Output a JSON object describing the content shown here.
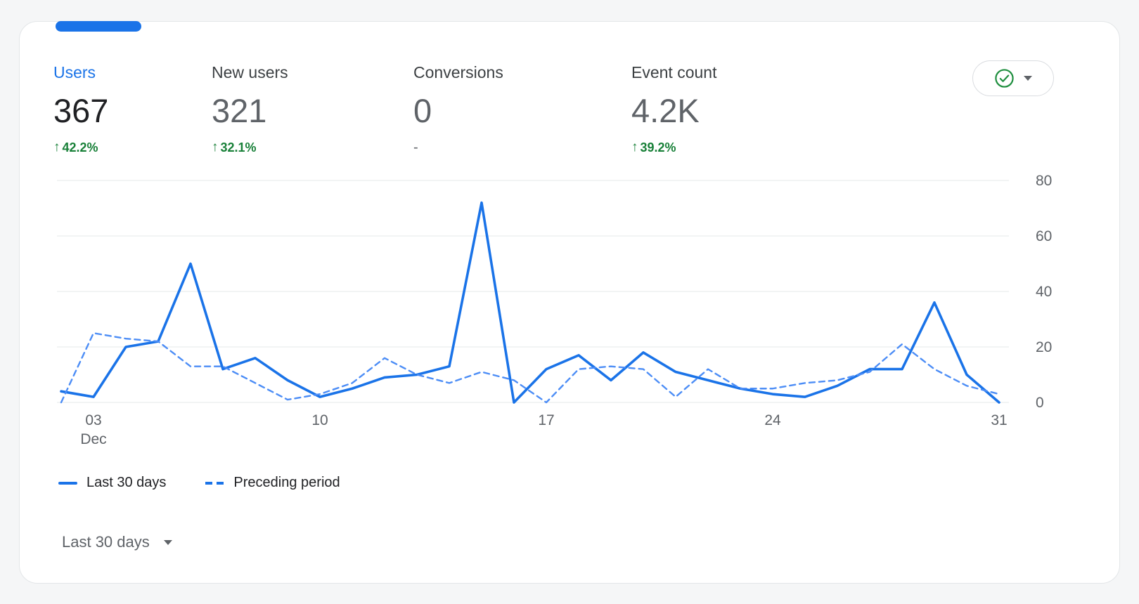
{
  "card": {
    "metrics": [
      {
        "label": "Users",
        "value": "367",
        "arrow": "↑",
        "delta": "42.2%",
        "active": true
      },
      {
        "label": "New users",
        "value": "321",
        "arrow": "↑",
        "delta": "32.1%",
        "active": false
      },
      {
        "label": "Conversions",
        "value": "0",
        "arrow": "",
        "delta": "-",
        "active": false
      },
      {
        "label": "Event count",
        "value": "4.2K",
        "arrow": "↑",
        "delta": "39.2%",
        "active": false
      }
    ],
    "legend": [
      {
        "label": "Last 30 days",
        "style": "solid"
      },
      {
        "label": "Preceding period",
        "style": "dashed"
      }
    ],
    "footer": {
      "range_label": "Last 30 days"
    }
  },
  "colors": {
    "accent": "#1a73e8",
    "positive": "#188038",
    "muted_text": "#5f6368",
    "gridline": "#e6e8ea"
  },
  "chart_data": {
    "type": "line",
    "title": "Users over last 30 days vs preceding period",
    "xlabel": "",
    "ylabel": "",
    "ylim": [
      0,
      80
    ],
    "y_ticks": [
      0,
      20,
      40,
      60,
      80
    ],
    "grid": true,
    "legend_position": "bottom-left",
    "x_tick_labels": [
      {
        "index": 1,
        "label": "03",
        "sub": "Dec"
      },
      {
        "index": 8,
        "label": "10"
      },
      {
        "index": 15,
        "label": "17"
      },
      {
        "index": 22,
        "label": "24"
      },
      {
        "index": 29,
        "label": "31"
      }
    ],
    "series": [
      {
        "name": "Last 30 days",
        "style": "solid",
        "color": "#1a73e8",
        "values": [
          4,
          2,
          20,
          22,
          50,
          12,
          16,
          8,
          2,
          5,
          9,
          10,
          13,
          72,
          0,
          12,
          17,
          8,
          18,
          11,
          8,
          5,
          3,
          2,
          6,
          12,
          12,
          36,
          10,
          0
        ]
      },
      {
        "name": "Preceding period",
        "style": "dashed",
        "color": "#4c8df6",
        "values": [
          0,
          25,
          23,
          22,
          13,
          13,
          7,
          1,
          3,
          7,
          16,
          10,
          7,
          11,
          8,
          0,
          12,
          13,
          12,
          2,
          12,
          5,
          5,
          7,
          8,
          11,
          21,
          12,
          6,
          3
        ]
      }
    ]
  }
}
